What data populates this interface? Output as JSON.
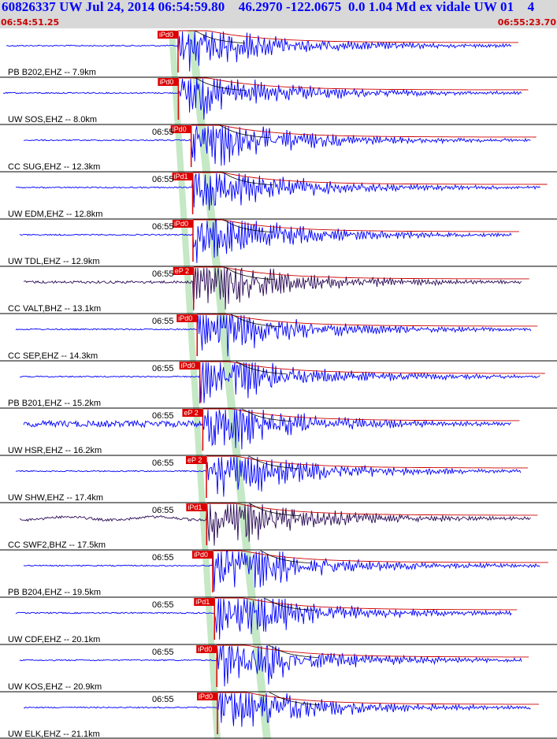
{
  "header": {
    "title": "60826337 UW Jul 24, 2014 06:54:59.80    46.2970 -122.0675  0.0 1.04 Md ex vidale UW 01    4",
    "time_start": "06:54:51.25",
    "time_end": "06:55:23.70"
  },
  "colors": {
    "header_bg": "#d8d8d8",
    "header_text": "#0000ff",
    "time_text": "#cc0000",
    "trace_ehz": "#0000ff",
    "trace_bhz": "#2a0a55",
    "pick_box": "#dd0000",
    "coda_decay": "#cc0000",
    "window_band": "#bfe6bf",
    "separator": "#000000"
  },
  "chart_data": {
    "type": "seismogram",
    "time_window": [
      "06:54:51.25",
      "06:55:23.70"
    ],
    "tick_label": "06:55",
    "traces": [
      {
        "label": "PB B202,EHZ -- 7.9km",
        "distance_km": 7.9,
        "pick": "iPd0",
        "channel": "EHZ",
        "show_tick": false
      },
      {
        "label": "UW SOS,EHZ -- 8.0km",
        "distance_km": 8.0,
        "pick": "iPd0",
        "channel": "EHZ",
        "show_tick": false
      },
      {
        "label": "CC SUG,EHZ -- 12.3km",
        "distance_km": 12.3,
        "pick": "iPd0",
        "channel": "EHZ",
        "show_tick": true
      },
      {
        "label": "UW EDM,EHZ -- 12.8km",
        "distance_km": 12.8,
        "pick": "iPd1",
        "channel": "EHZ",
        "show_tick": true
      },
      {
        "label": "UW TDL,EHZ -- 12.9km",
        "distance_km": 12.9,
        "pick": "iPd0",
        "channel": "EHZ",
        "show_tick": true
      },
      {
        "label": "CC VALT,BHZ -- 13.1km",
        "distance_km": 13.1,
        "pick": "eP 2",
        "channel": "BHZ",
        "show_tick": true
      },
      {
        "label": "CC SEP,EHZ -- 14.3km",
        "distance_km": 14.3,
        "pick": "iPd0",
        "channel": "EHZ",
        "show_tick": true
      },
      {
        "label": "PB B201,EHZ -- 15.2km",
        "distance_km": 15.2,
        "pick": "iPd0",
        "channel": "EHZ",
        "show_tick": true
      },
      {
        "label": "UW HSR,EHZ -- 16.2km",
        "distance_km": 16.2,
        "pick": "eP 2",
        "channel": "EHZ",
        "show_tick": true
      },
      {
        "label": "UW SHW,EHZ -- 17.4km",
        "distance_km": 17.4,
        "pick": "eP 2",
        "channel": "EHZ",
        "show_tick": true
      },
      {
        "label": "CC SWF2,BHZ -- 17.5km",
        "distance_km": 17.5,
        "pick": "iPd1",
        "channel": "BHZ",
        "show_tick": true
      },
      {
        "label": "PB B204,EHZ -- 19.5km",
        "distance_km": 19.5,
        "pick": "iPd0",
        "channel": "EHZ",
        "show_tick": true
      },
      {
        "label": "UW CDF,EHZ -- 20.1km",
        "distance_km": 20.1,
        "pick": "iPd1",
        "channel": "EHZ",
        "show_tick": true
      },
      {
        "label": "UW KOS,EHZ -- 20.9km",
        "distance_km": 20.9,
        "pick": "iPd0",
        "channel": "EHZ",
        "show_tick": true
      },
      {
        "label": "UW ELK,EHZ -- 21.1km",
        "distance_km": 21.1,
        "pick": "iPd0",
        "channel": "EHZ",
        "show_tick": true
      }
    ]
  }
}
